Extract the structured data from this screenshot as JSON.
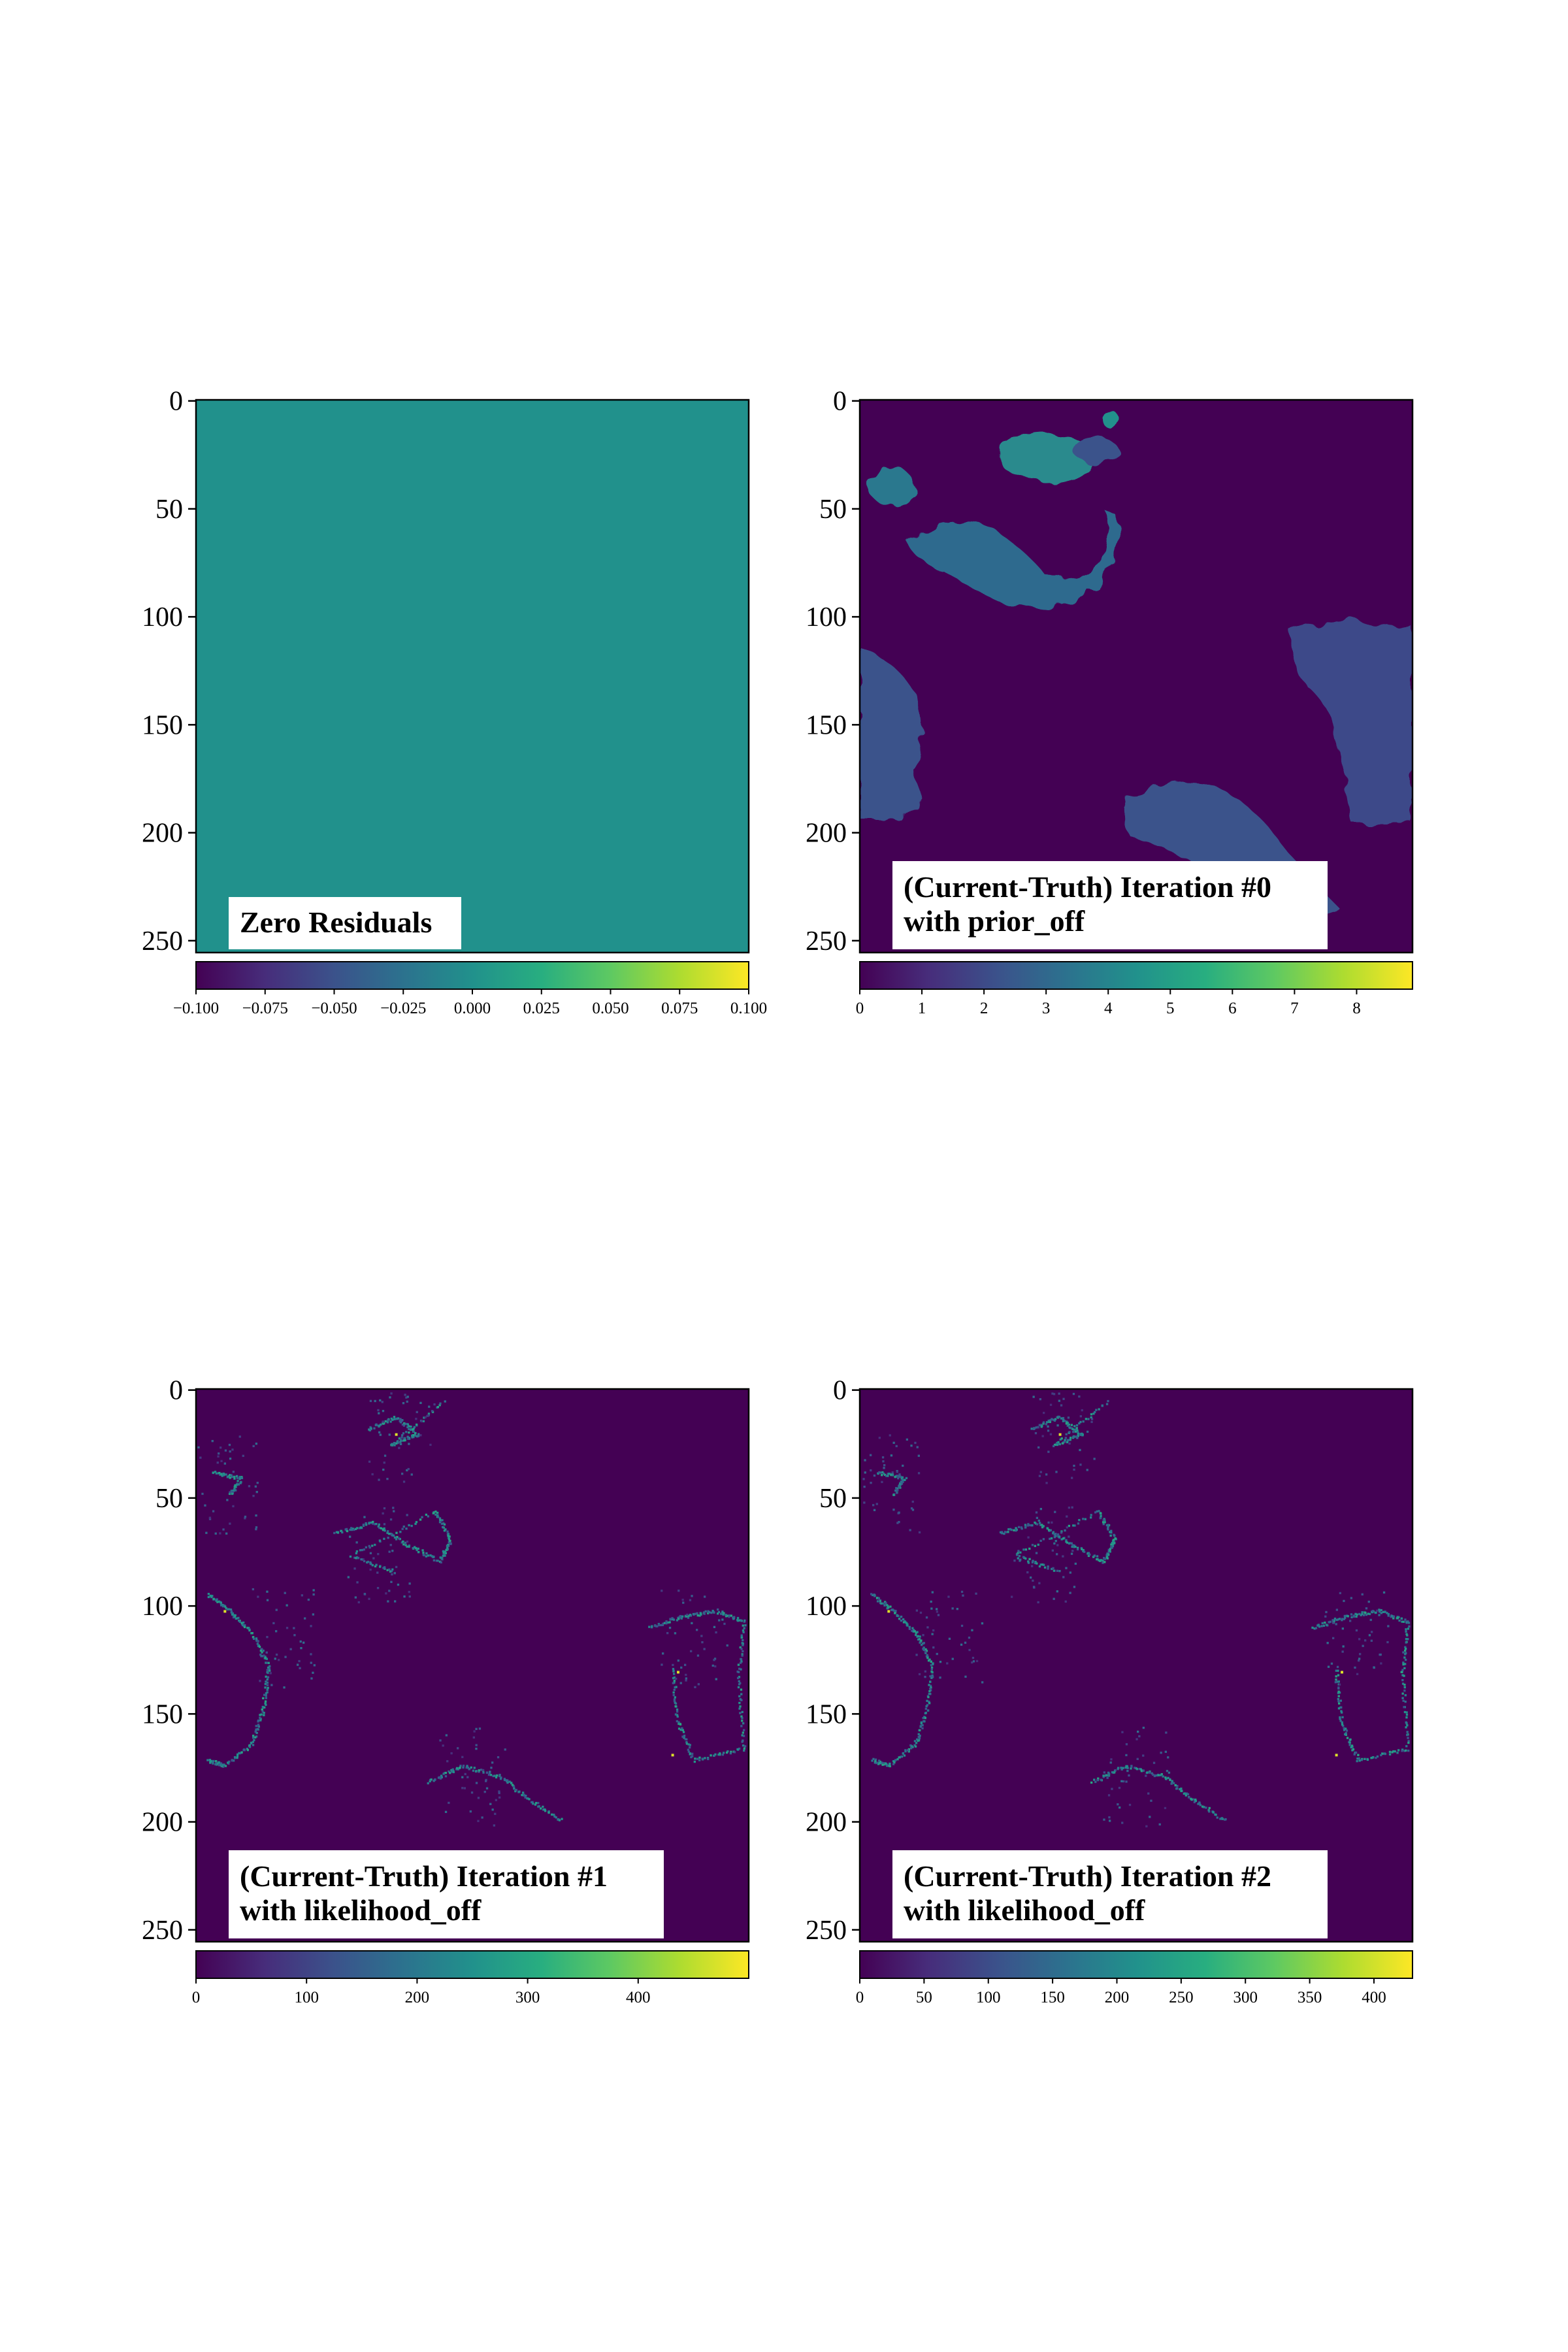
{
  "chart_data": [
    {
      "type": "heatmap",
      "label": "Zero Residuals",
      "label_lines": [
        "Zero Residuals"
      ],
      "y_ticks": [
        "0",
        "50",
        "100",
        "150",
        "200",
        "250"
      ],
      "y_range": [
        0,
        255
      ],
      "x_range": [
        0,
        255
      ],
      "colorbar": {
        "range": [
          -0.1,
          0.1
        ],
        "ticks": [
          "−0.100",
          "−0.075",
          "−0.050",
          "−0.025",
          "0.000",
          "0.025",
          "0.050",
          "0.075",
          "0.100"
        ]
      },
      "image": {
        "kind": "uniform",
        "value": 0.0
      }
    },
    {
      "type": "heatmap",
      "label": "(Current-Truth) Iteration #0 with prior_off",
      "label_lines": [
        "(Current-Truth) Iteration #0",
        "with prior_off"
      ],
      "y_ticks": [
        "0",
        "50",
        "100",
        "150",
        "200",
        "250"
      ],
      "y_range": [
        0,
        255
      ],
      "x_range": [
        0,
        255
      ],
      "colorbar": {
        "range": [
          0,
          8.9
        ],
        "ticks": [
          "0",
          "1",
          "2",
          "3",
          "4",
          "5",
          "6",
          "7",
          "8"
        ]
      },
      "image": {
        "kind": "blobs",
        "background": 0
      }
    },
    {
      "type": "heatmap",
      "label": "(Current-Truth) Iteration #1 with likelihood_off",
      "label_lines": [
        "(Current-Truth) Iteration #1",
        "with likelihood_off"
      ],
      "y_ticks": [
        "0",
        "50",
        "100",
        "150",
        "200",
        "250"
      ],
      "y_range": [
        0,
        255
      ],
      "x_range": [
        0,
        255
      ],
      "colorbar": {
        "range": [
          0,
          500
        ],
        "ticks": [
          "0",
          "100",
          "200",
          "300",
          "400"
        ]
      },
      "image": {
        "kind": "edges",
        "background": 0
      }
    },
    {
      "type": "heatmap",
      "label": "(Current-Truth) Iteration #2 with likelihood_off",
      "label_lines": [
        "(Current-Truth) Iteration #2",
        "with likelihood_off"
      ],
      "y_ticks": [
        "0",
        "50",
        "100",
        "150",
        "200",
        "250"
      ],
      "y_range": [
        0,
        255
      ],
      "x_range": [
        0,
        255
      ],
      "colorbar": {
        "range": [
          0,
          430
        ],
        "ticks": [
          "0",
          "50",
          "100",
          "150",
          "200",
          "250",
          "300",
          "350",
          "400"
        ]
      },
      "image": {
        "kind": "edges",
        "background": 0
      }
    }
  ],
  "colors": {
    "viridis_low": "#440154",
    "viridis_mid": "#21918c",
    "viridis_high": "#fde725"
  }
}
